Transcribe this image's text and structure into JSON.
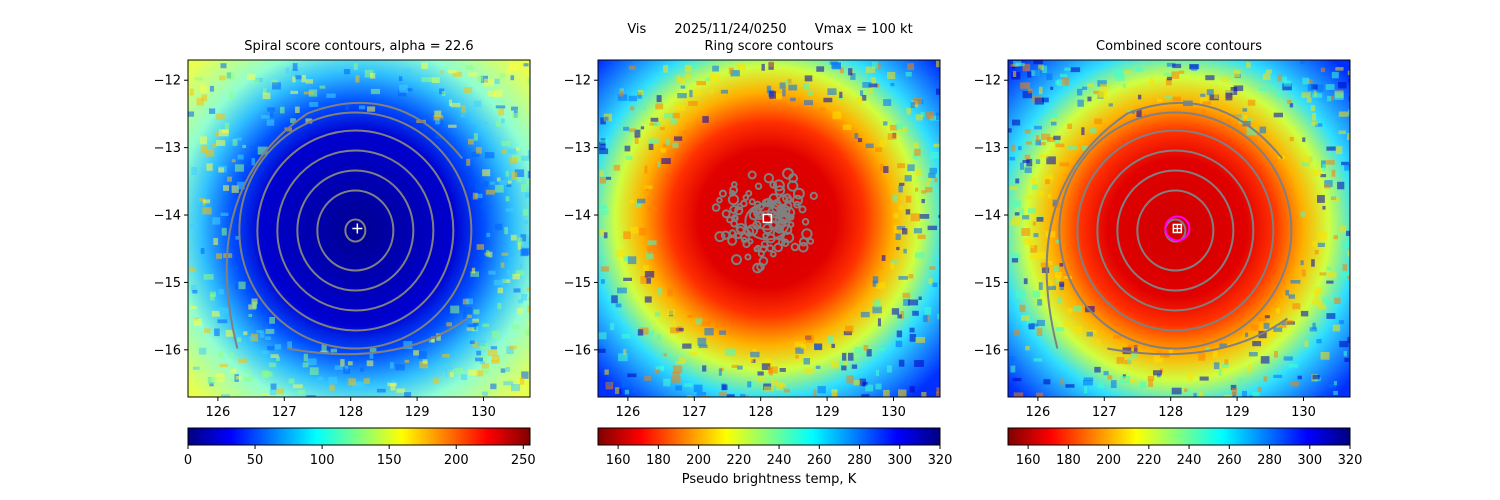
{
  "header": {
    "sat_label": "Vis",
    "datetime": "2025/11/24/0250",
    "vmax_label": "Vmax = 100 kt"
  },
  "colorbar_label": "Pseudo brightness temp, K",
  "colormap": [
    "#800000",
    "#ff0000",
    "#ff8000",
    "#ffff00",
    "#80ff80",
    "#00ffff",
    "#0080ff",
    "#0000ff",
    "#000080"
  ],
  "chart_data": [
    {
      "type": "heatmap",
      "title": "Spiral score contours, alpha = 22.6",
      "xlim": [
        125.55,
        130.7
      ],
      "ylim": [
        -16.7,
        -11.7
      ],
      "xticks": [
        126,
        127,
        128,
        129,
        130
      ],
      "yticks": [
        -12,
        -13,
        -14,
        -15,
        -16
      ],
      "xtick_labels": [
        "126",
        "127",
        "128",
        "129",
        "130"
      ],
      "ytick_labels": [
        "−12",
        "−13",
        "−14",
        "−15",
        "−16"
      ],
      "center": [
        128.1,
        -14.2
      ],
      "center_marker": "plus",
      "contour_color": "#808080",
      "colorbar": {
        "range": [
          0,
          255
        ],
        "ticks": [
          0,
          50,
          100,
          150,
          200,
          250
        ],
        "tick_labels": [
          "0",
          "50",
          "100",
          "150",
          "200",
          "250"
        ],
        "reversed": false
      }
    },
    {
      "type": "heatmap",
      "title": "Ring score contours",
      "xlim": [
        125.55,
        130.7
      ],
      "ylim": [
        -16.7,
        -11.7
      ],
      "xticks": [
        126,
        127,
        128,
        129,
        130
      ],
      "yticks": [
        -12,
        -13,
        -14,
        -15,
        -16
      ],
      "xtick_labels": [
        "126",
        "127",
        "128",
        "129",
        "130"
      ],
      "ytick_labels": [
        "−12",
        "−13",
        "−14",
        "−15",
        "−16"
      ],
      "center": [
        128.1,
        -14.05
      ],
      "center_marker": "square",
      "contour_color": "#808080",
      "colorbar": {
        "range": [
          150,
          320
        ],
        "ticks": [
          160,
          180,
          200,
          220,
          240,
          260,
          280,
          300,
          320
        ],
        "tick_labels": [
          "160",
          "180",
          "200",
          "220",
          "240",
          "260",
          "280",
          "300",
          "320"
        ],
        "reversed": true
      }
    },
    {
      "type": "heatmap",
      "title": "Combined score contours",
      "xlim": [
        125.55,
        130.7
      ],
      "ylim": [
        -16.7,
        -11.7
      ],
      "xticks": [
        126,
        127,
        128,
        129,
        130
      ],
      "yticks": [
        -12,
        -13,
        -14,
        -15,
        -16
      ],
      "xtick_labels": [
        "126",
        "127",
        "128",
        "129",
        "130"
      ],
      "ytick_labels": [
        "−12",
        "−13",
        "−14",
        "−15",
        "−16"
      ],
      "center": [
        128.1,
        -14.2
      ],
      "center_marker": "square-plus",
      "contour_color": "#808080",
      "circle_color": "#ff00ff",
      "colorbar": {
        "range": [
          150,
          320
        ],
        "ticks": [
          160,
          180,
          200,
          220,
          240,
          260,
          280,
          300,
          320
        ],
        "tick_labels": [
          "160",
          "180",
          "200",
          "220",
          "240",
          "260",
          "280",
          "300",
          "320"
        ],
        "reversed": true
      }
    }
  ]
}
